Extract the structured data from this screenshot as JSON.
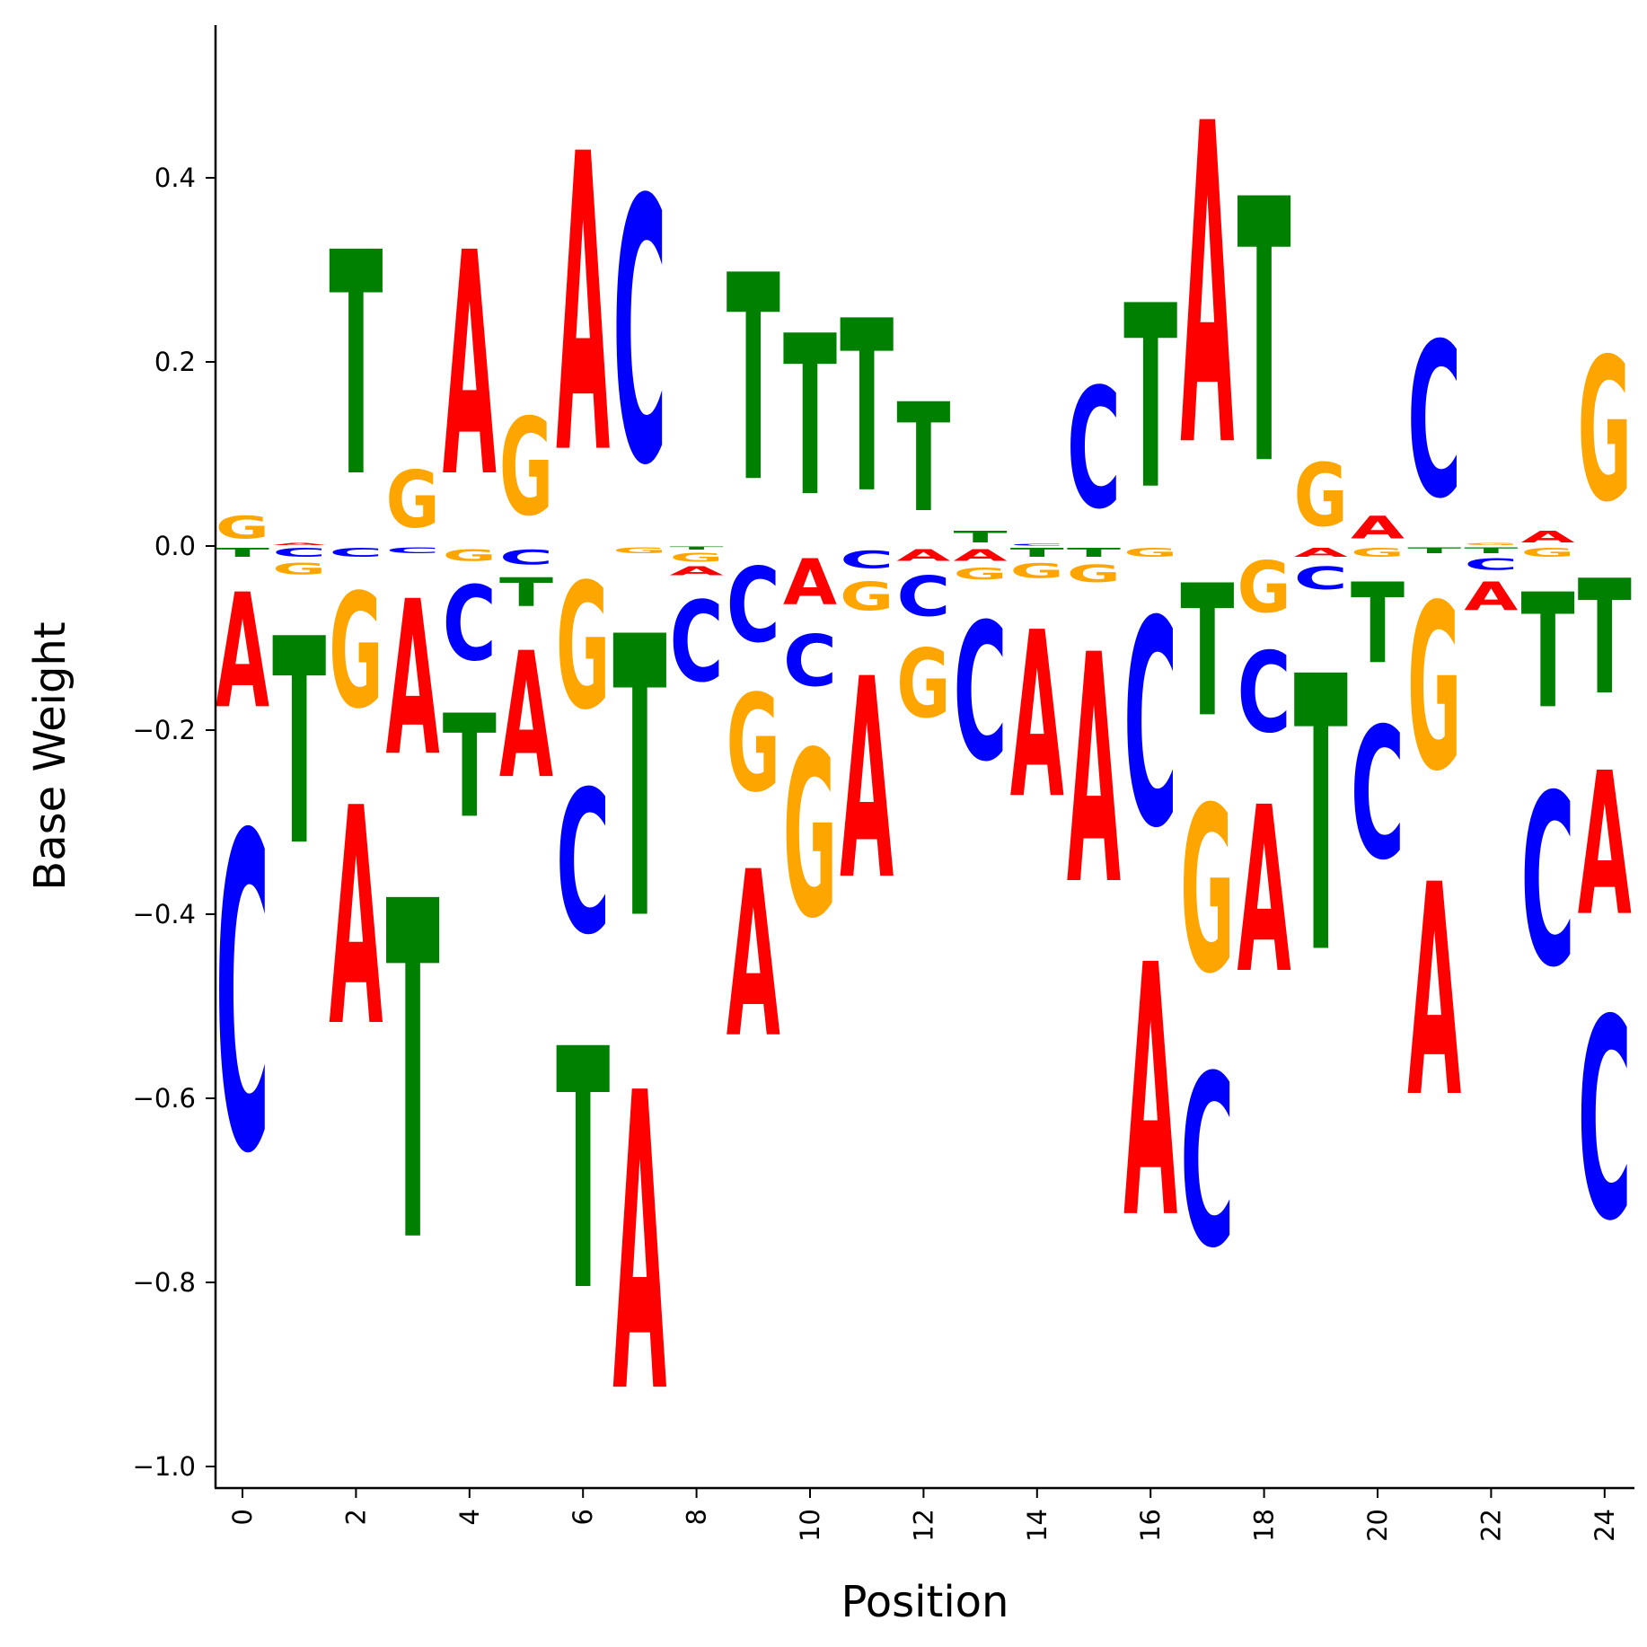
{
  "chart_data": {
    "type": "sequence-logo",
    "xlabel": "Position",
    "ylabel": "Base Weight",
    "x_ticks": [
      "0",
      "2",
      "4",
      "6",
      "8",
      "10",
      "12",
      "14",
      "16",
      "18",
      "20",
      "22",
      "24"
    ],
    "y_ticks": [
      "−1.0",
      "−0.8",
      "−0.6",
      "−0.4",
      "−0.2",
      "0.0",
      "0.2",
      "0.4"
    ],
    "ylim": [
      -1.02,
      0.56
    ],
    "xlim": [
      -0.5,
      24.5
    ],
    "grid": false,
    "colors": {
      "A": "#ff0000",
      "C": "#0000ff",
      "G": "#ffa500",
      "T": "#008000"
    },
    "positions": [
      {
        "x": 0,
        "letters": [
          {
            "base": "G",
            "value": 0.04
          },
          {
            "base": "T",
            "value": -0.015
          },
          {
            "base": "A",
            "value": -0.2
          },
          {
            "base": "C",
            "value": -0.55
          }
        ]
      },
      {
        "x": 1,
        "letters": [
          {
            "base": "A",
            "value": 0.004
          },
          {
            "base": "C",
            "value": -0.015
          },
          {
            "base": "G",
            "value": -0.02
          },
          {
            "base": "T",
            "value": -0.36
          }
        ]
      },
      {
        "x": 2,
        "letters": [
          {
            "base": "T",
            "value": 0.39
          },
          {
            "base": "C",
            "value": -0.015
          },
          {
            "base": "G",
            "value": -0.2
          },
          {
            "base": "A",
            "value": -0.38
          }
        ]
      },
      {
        "x": 3,
        "letters": [
          {
            "base": "G",
            "value": 0.1
          },
          {
            "base": "C",
            "value": -0.01
          },
          {
            "base": "A",
            "value": -0.27
          },
          {
            "base": "T",
            "value": -0.59
          }
        ]
      },
      {
        "x": 4,
        "letters": [
          {
            "base": "A",
            "value": 0.39
          },
          {
            "base": "G",
            "value": -0.02
          },
          {
            "base": "C",
            "value": -0.13
          },
          {
            "base": "T",
            "value": -0.18
          }
        ]
      },
      {
        "x": 5,
        "letters": [
          {
            "base": "G",
            "value": 0.17
          },
          {
            "base": "C",
            "value": -0.025
          },
          {
            "base": "T",
            "value": -0.05
          },
          {
            "base": "A",
            "value": -0.22
          }
        ]
      },
      {
        "x": 6,
        "letters": [
          {
            "base": "A",
            "value": 0.52
          },
          {
            "base": "G",
            "value": -0.22
          },
          {
            "base": "C",
            "value": -0.25
          },
          {
            "base": "T",
            "value": -0.42
          }
        ]
      },
      {
        "x": 7,
        "letters": [
          {
            "base": "C",
            "value": 0.46
          },
          {
            "base": "G",
            "value": -0.01
          },
          {
            "base": "T",
            "value": -0.49
          },
          {
            "base": "A",
            "value": -0.52
          }
        ]
      },
      {
        "x": 8,
        "letters": [
          {
            "base": "T",
            "value": -0.005
          },
          {
            "base": "G",
            "value": -0.015
          },
          {
            "base": "A",
            "value": -0.015
          },
          {
            "base": "C",
            "value": -0.14
          }
        ]
      },
      {
        "x": 9,
        "letters": [
          {
            "base": "T",
            "value": 0.36
          },
          {
            "base": "C",
            "value": -0.13
          },
          {
            "base": "G",
            "value": -0.17
          },
          {
            "base": "A",
            "value": -0.29
          }
        ]
      },
      {
        "x": 10,
        "letters": [
          {
            "base": "T",
            "value": 0.28
          },
          {
            "base": "A",
            "value": -0.08
          },
          {
            "base": "C",
            "value": -0.09
          },
          {
            "base": "G",
            "value": -0.29
          }
        ]
      },
      {
        "x": 11,
        "letters": [
          {
            "base": "T",
            "value": 0.3
          },
          {
            "base": "C",
            "value": -0.03
          },
          {
            "base": "G",
            "value": -0.05
          },
          {
            "base": "A",
            "value": -0.35
          }
        ]
      },
      {
        "x": 12,
        "letters": [
          {
            "base": "T",
            "value": 0.19
          },
          {
            "base": "A",
            "value": -0.02
          },
          {
            "base": "C",
            "value": -0.07
          },
          {
            "base": "G",
            "value": -0.12
          }
        ]
      },
      {
        "x": 13,
        "letters": [
          {
            "base": "T",
            "value": 0.02
          },
          {
            "base": "A",
            "value": -0.02
          },
          {
            "base": "G",
            "value": -0.02
          },
          {
            "base": "C",
            "value": -0.24
          }
        ]
      },
      {
        "x": 14,
        "letters": [
          {
            "base": "C",
            "value": 0.003
          },
          {
            "base": "T",
            "value": -0.015
          },
          {
            "base": "G",
            "value": -0.025
          },
          {
            "base": "A",
            "value": -0.29
          }
        ]
      },
      {
        "x": 15,
        "letters": [
          {
            "base": "C",
            "value": 0.21
          },
          {
            "base": "T",
            "value": -0.015
          },
          {
            "base": "G",
            "value": -0.03
          },
          {
            "base": "A",
            "value": -0.4
          }
        ]
      },
      {
        "x": 16,
        "letters": [
          {
            "base": "T",
            "value": 0.32
          },
          {
            "base": "G",
            "value": -0.015
          },
          {
            "base": "C",
            "value": -0.36
          },
          {
            "base": "A",
            "value": -0.44
          }
        ]
      },
      {
        "x": 17,
        "letters": [
          {
            "base": "A",
            "value": 0.56
          },
          {
            "base": "T",
            "value": -0.23
          },
          {
            "base": "G",
            "value": -0.29
          },
          {
            "base": "C",
            "value": -0.3
          }
        ]
      },
      {
        "x": 18,
        "letters": [
          {
            "base": "T",
            "value": 0.46
          },
          {
            "base": "G",
            "value": -0.09
          },
          {
            "base": "C",
            "value": -0.14
          },
          {
            "base": "A",
            "value": -0.29
          }
        ]
      },
      {
        "x": 19,
        "letters": [
          {
            "base": "G",
            "value": 0.11
          },
          {
            "base": "A",
            "value": -0.015
          },
          {
            "base": "C",
            "value": -0.04
          },
          {
            "base": "T",
            "value": -0.48
          }
        ]
      },
      {
        "x": 20,
        "letters": [
          {
            "base": "A",
            "value": 0.04
          },
          {
            "base": "G",
            "value": -0.015
          },
          {
            "base": "T",
            "value": -0.14
          },
          {
            "base": "C",
            "value": -0.23
          }
        ]
      },
      {
        "x": 21,
        "letters": [
          {
            "base": "C",
            "value": 0.27
          },
          {
            "base": "T",
            "value": -0.01
          },
          {
            "base": "G",
            "value": -0.29
          },
          {
            "base": "A",
            "value": -0.37
          }
        ]
      },
      {
        "x": 22,
        "letters": [
          {
            "base": "G",
            "value": 0.004
          },
          {
            "base": "T",
            "value": -0.01
          },
          {
            "base": "C",
            "value": -0.02
          },
          {
            "base": "A",
            "value": -0.05
          }
        ]
      },
      {
        "x": 23,
        "letters": [
          {
            "base": "A",
            "value": 0.02
          },
          {
            "base": "G",
            "value": -0.015
          },
          {
            "base": "T",
            "value": -0.2
          },
          {
            "base": "C",
            "value": -0.3
          }
        ]
      },
      {
        "x": 24,
        "letters": [
          {
            "base": "G",
            "value": 0.25
          },
          {
            "base": "T",
            "value": -0.2
          },
          {
            "base": "A",
            "value": -0.25
          },
          {
            "base": "C",
            "value": -0.35
          }
        ]
      }
    ]
  }
}
